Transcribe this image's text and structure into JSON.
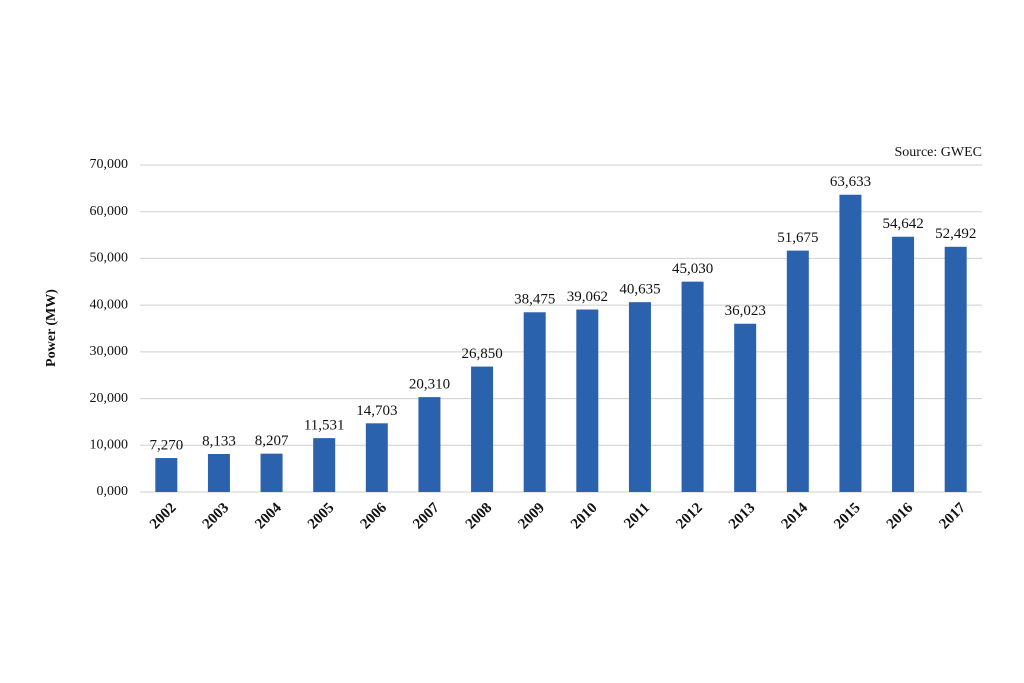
{
  "chart_data": {
    "type": "bar",
    "annotation": "Source: GWEC",
    "y_label": "Power (MW)",
    "categories": [
      "2002",
      "2003",
      "2004",
      "2005",
      "2006",
      "2007",
      "2008",
      "2009",
      "2010",
      "2011",
      "2012",
      "2013",
      "2014",
      "2015",
      "2016",
      "2017"
    ],
    "values": [
      7270,
      8133,
      8207,
      11531,
      14703,
      20310,
      26850,
      38475,
      39062,
      40635,
      45030,
      36023,
      51675,
      63633,
      54642,
      52492
    ],
    "value_labels": [
      "7,270",
      "8,133",
      "8,207",
      "11,531",
      "14,703",
      "20,310",
      "26,850",
      "38,475",
      "39,062",
      "40,635",
      "45,030",
      "36,023",
      "51,675",
      "63,633",
      "54,642",
      "52,492"
    ],
    "color": "#2a62ae",
    "ylim": [
      0,
      70000
    ],
    "yticks": [
      {
        "value": 0,
        "label": "0,000"
      },
      {
        "value": 10000,
        "label": "10,000"
      },
      {
        "value": 20000,
        "label": "20,000"
      },
      {
        "value": 30000,
        "label": "30,000"
      },
      {
        "value": 40000,
        "label": "40,000"
      },
      {
        "value": 50000,
        "label": "50,000"
      },
      {
        "value": 60000,
        "label": "60,000"
      },
      {
        "value": 70000,
        "label": "70,000"
      }
    ],
    "grid": true
  }
}
